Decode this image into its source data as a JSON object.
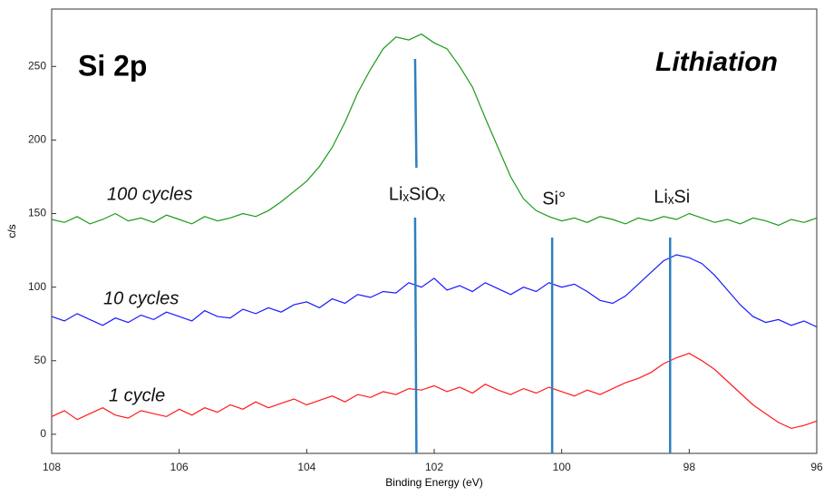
{
  "chart_data": {
    "type": "line",
    "title": "Si 2p",
    "subtitle": "Lithiation",
    "x_label": "Binding Energy (eV)",
    "y_label": "c/s",
    "xlim": [
      108,
      96
    ],
    "ylim": [
      -13,
      289
    ],
    "xticks": [
      108,
      106,
      104,
      102,
      100,
      98,
      96
    ],
    "yticks": [
      0,
      50,
      100,
      150,
      200,
      250
    ],
    "x": [
      108,
      107.8,
      107.6,
      107.4,
      107.2,
      107,
      106.8,
      106.6,
      106.4,
      106.2,
      106,
      105.8,
      105.6,
      105.4,
      105.2,
      105,
      104.8,
      104.6,
      104.4,
      104.2,
      104,
      103.8,
      103.6,
      103.4,
      103.2,
      103,
      102.8,
      102.6,
      102.4,
      102.2,
      102,
      101.8,
      101.6,
      101.4,
      101.2,
      101,
      100.8,
      100.6,
      100.4,
      100.2,
      100,
      99.8,
      99.6,
      99.4,
      99.2,
      99,
      98.8,
      98.6,
      98.4,
      98.2,
      98,
      97.8,
      97.6,
      97.4,
      97.2,
      97,
      96.8,
      96.6,
      96.4,
      96.2,
      96
    ],
    "series": [
      {
        "name": "100 cycles",
        "color": "#1a9a1a",
        "values": [
          146,
          144,
          148,
          143,
          146,
          150,
          145,
          147,
          144,
          149,
          146,
          143,
          148,
          145,
          147,
          150,
          148,
          152,
          158,
          165,
          172,
          182,
          195,
          212,
          232,
          248,
          262,
          270,
          268,
          272,
          266,
          262,
          250,
          236,
          215,
          195,
          175,
          160,
          152,
          148,
          145,
          147,
          144,
          148,
          146,
          143,
          147,
          145,
          148,
          146,
          150,
          147,
          144,
          146,
          143,
          147,
          145,
          142,
          146,
          144,
          147
        ]
      },
      {
        "name": "10 cycles",
        "color": "#1a1aff",
        "values": [
          80,
          77,
          82,
          78,
          74,
          79,
          76,
          81,
          78,
          83,
          80,
          77,
          84,
          80,
          79,
          85,
          82,
          86,
          83,
          88,
          90,
          86,
          92,
          89,
          95,
          93,
          97,
          96,
          103,
          100,
          106,
          98,
          101,
          97,
          103,
          99,
          95,
          100,
          97,
          103,
          100,
          102,
          97,
          91,
          89,
          94,
          102,
          110,
          118,
          122,
          120,
          116,
          108,
          98,
          88,
          80,
          76,
          78,
          74,
          77,
          73
        ]
      },
      {
        "name": "1 cycle",
        "color": "#ff1a1a",
        "values": [
          12,
          16,
          10,
          14,
          18,
          13,
          11,
          16,
          14,
          12,
          17,
          13,
          18,
          15,
          20,
          17,
          22,
          18,
          21,
          24,
          20,
          23,
          26,
          22,
          27,
          25,
          29,
          27,
          31,
          30,
          33,
          29,
          32,
          28,
          34,
          30,
          27,
          31,
          28,
          32,
          29,
          26,
          30,
          27,
          31,
          35,
          38,
          42,
          48,
          52,
          55,
          50,
          44,
          36,
          28,
          20,
          14,
          8,
          4,
          6,
          9
        ]
      }
    ],
    "markers": [
      {
        "label": "LiₓSiOₓ",
        "x": 102.3
      },
      {
        "label": "Si°",
        "x": 100.15
      },
      {
        "label": "LiₓSi",
        "x": 98.3
      }
    ],
    "marker_color": "#2e7fc0"
  }
}
